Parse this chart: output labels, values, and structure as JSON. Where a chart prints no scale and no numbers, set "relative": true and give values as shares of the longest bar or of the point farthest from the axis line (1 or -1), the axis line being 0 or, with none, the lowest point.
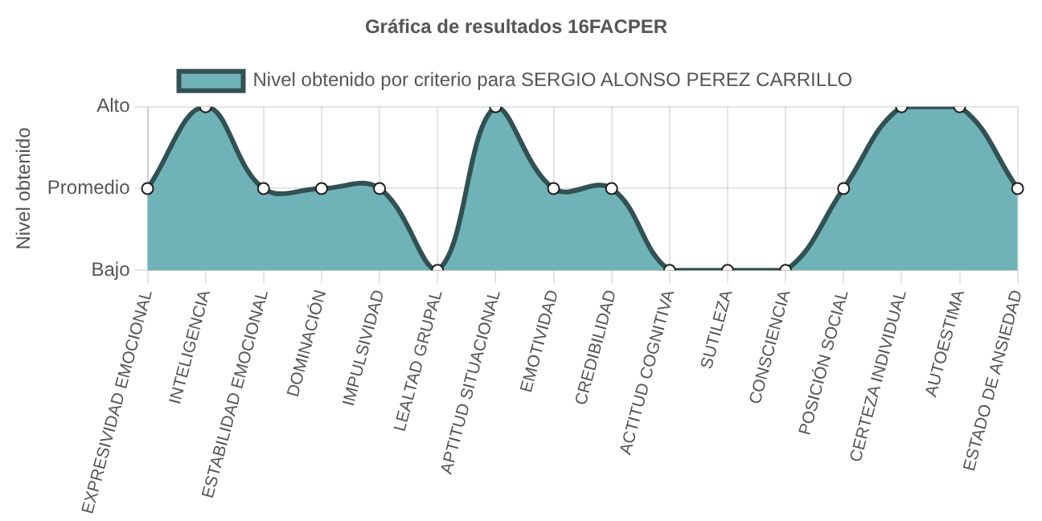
{
  "chart_data": {
    "type": "area",
    "title": "Gráfica de resultados 16FACPER",
    "ylabel": "Nivel obtenido",
    "relative": true,
    "categories": [
      "EXPRESIVIDAD EMOCIONAL",
      "INTELIGENCIA",
      "ESTABILIDAD EMOCIONAL",
      "DOMINACIÓN",
      "IMPULSIVIDAD",
      "LEALTAD GRUPAL",
      "APTITUD SITUACIONAL",
      "EMOTIVIDAD",
      "CREDIBILIDAD",
      "ACTITUD COGNITIVA",
      "SUTILEZA",
      "CONSCIENCIA",
      "POSICIÓN SOCIAL",
      "CERTEZA INDIVIDUAL",
      "AUTOESTIMA",
      "ESTADO DE ANSIEDAD"
    ],
    "series": [
      {
        "name": "Nivel obtenido por criterio para SERGIO ALONSO PEREZ CARRILLO",
        "color": "#6fb3b8",
        "values": [
          0.5,
          1,
          0.5,
          0.5,
          0.5,
          0,
          1,
          0.5,
          0.5,
          0,
          0,
          0,
          0.5,
          1,
          1,
          0.5
        ]
      }
    ],
    "annotations": [
      "Alto",
      "Promedio",
      "Bajo"
    ],
    "grid": true,
    "legend": "top",
    "marker": "circle"
  }
}
